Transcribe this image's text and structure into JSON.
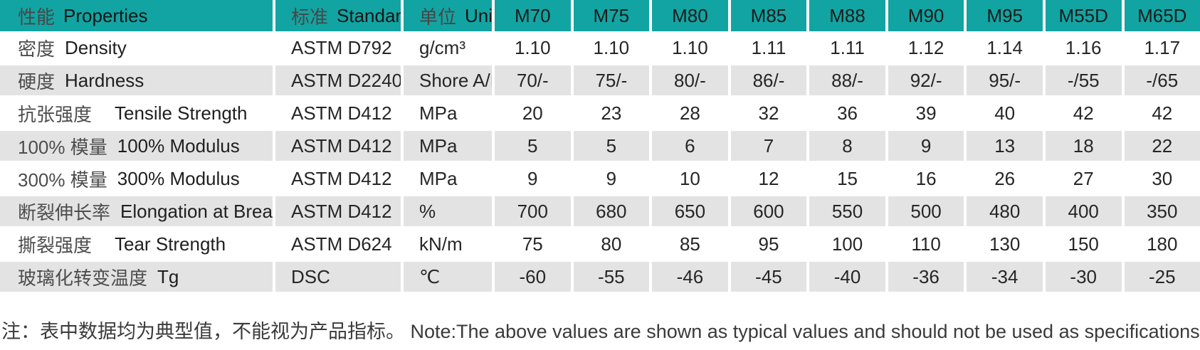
{
  "colors": {
    "header_teal": "#12a4a2",
    "row_alt_gray": "#e3e3e4"
  },
  "table": {
    "header": {
      "property": {
        "cn": "性能",
        "en": "Properties"
      },
      "standard": {
        "cn": "标准",
        "en": "Standard"
      },
      "unit": {
        "cn": "单位",
        "en": "Unit"
      },
      "models": [
        "M70",
        "M75",
        "M80",
        "M85",
        "M88",
        "M90",
        "M95",
        "M55D",
        "M65D"
      ]
    },
    "rows": [
      {
        "cn": "密度",
        "en": "Density",
        "standard": "ASTM D792",
        "unit": "g/cm³",
        "values": [
          "1.10",
          "1.10",
          "1.10",
          "1.11",
          "1.11",
          "1.12",
          "1.14",
          "1.16",
          "1.17"
        ]
      },
      {
        "cn": "硬度",
        "en": "Hardness",
        "standard": "ASTM D2240",
        "unit": "Shore A/D",
        "values": [
          "70/-",
          "75/-",
          "80/-",
          "86/-",
          "88/-",
          "92/-",
          "95/-",
          "-/55",
          "-/65"
        ]
      },
      {
        "cn": "抗张强度",
        "en": "Tensile Strength",
        "standard": "ASTM D412",
        "unit": "MPa",
        "values": [
          "20",
          "23",
          "28",
          "32",
          "36",
          "39",
          "40",
          "42",
          "42"
        ]
      },
      {
        "cn": "100% 模量",
        "en": "100% Modulus",
        "standard": "ASTM D412",
        "unit": "MPa",
        "values": [
          "5",
          "5",
          "6",
          "7",
          "8",
          "9",
          "13",
          "18",
          "22"
        ]
      },
      {
        "cn": "300% 模量",
        "en": "300% Modulus",
        "standard": "ASTM D412",
        "unit": "MPa",
        "values": [
          "9",
          "9",
          "10",
          "12",
          "15",
          "16",
          "26",
          "27",
          "30"
        ]
      },
      {
        "cn": "断裂伸长率",
        "en": "Elongation at Break",
        "standard": "ASTM D412",
        "unit": "%",
        "values": [
          "700",
          "680",
          "650",
          "600",
          "550",
          "500",
          "480",
          "400",
          "350"
        ]
      },
      {
        "cn": "撕裂强度",
        "en": "Tear Strength",
        "standard": "ASTM D624",
        "unit": "kN/m",
        "values": [
          "75",
          "80",
          "85",
          "95",
          "100",
          "110",
          "130",
          "150",
          "180"
        ]
      },
      {
        "cn": "玻璃化转变温度",
        "en": "Tg",
        "standard": "DSC",
        "unit": "℃",
        "values": [
          "-60",
          "-55",
          "-46",
          "-45",
          "-40",
          "-36",
          "-34",
          "-30",
          "-25"
        ]
      }
    ]
  },
  "note": "注：表中数据均为典型值，不能视为产品指标。 Note:The above values are shown as typical values and should not be used as specifications."
}
